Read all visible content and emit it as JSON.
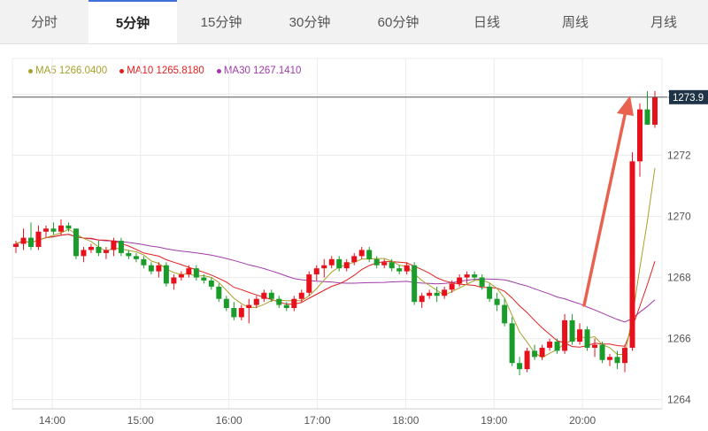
{
  "tabs": [
    {
      "label": "分时",
      "active": false
    },
    {
      "label": "5分钟",
      "active": true
    },
    {
      "label": "15分钟",
      "active": false
    },
    {
      "label": "30分钟",
      "active": false
    },
    {
      "label": "60分钟",
      "active": false
    },
    {
      "label": "日线",
      "active": false
    },
    {
      "label": "周线",
      "active": false
    },
    {
      "label": "月线",
      "active": false
    }
  ],
  "legend": [
    {
      "label": "MA5 1266.0400",
      "color": "#a6a12a"
    },
    {
      "label": "MA10 1265.8180",
      "color": "#e02020"
    },
    {
      "label": "MA30 1267.1410",
      "color": "#a03aa8"
    }
  ],
  "chart_data": {
    "type": "candlestick",
    "interval": "5分钟",
    "current_price_label": "1273.9",
    "current_price": 1273.9,
    "ylim": [
      1263.7,
      1274.3
    ],
    "yticks": [
      1264,
      1266,
      1268,
      1270,
      1272,
      1274
    ],
    "xlim": [
      13.55,
      20.9
    ],
    "xticks": [
      {
        "label": "14:00",
        "t": 14.0
      },
      {
        "label": "15:00",
        "t": 15.0
      },
      {
        "label": "16:00",
        "t": 16.0
      },
      {
        "label": "17:00",
        "t": 17.0
      },
      {
        "label": "18:00",
        "t": 18.0
      },
      {
        "label": "19:00",
        "t": 19.0
      },
      {
        "label": "20:00",
        "t": 20.0
      }
    ],
    "up_color": "#e8101b",
    "down_color": "#1a9c2a",
    "arrow_color": "#e8624f",
    "candles": [
      [
        1269.0,
        1269.2,
        1268.8,
        1269.1
      ],
      [
        1269.1,
        1269.6,
        1268.9,
        1269.3
      ],
      [
        1269.3,
        1269.8,
        1268.9,
        1269.0
      ],
      [
        1269.0,
        1269.7,
        1268.9,
        1269.5
      ],
      [
        1269.5,
        1269.7,
        1269.3,
        1269.6
      ],
      [
        1269.6,
        1269.8,
        1269.4,
        1269.5
      ],
      [
        1269.5,
        1269.9,
        1269.4,
        1269.7
      ],
      [
        1269.7,
        1269.8,
        1269.5,
        1269.6
      ],
      [
        1269.6,
        1269.6,
        1268.6,
        1268.7
      ],
      [
        1268.7,
        1269.0,
        1268.5,
        1268.9
      ],
      [
        1268.9,
        1269.1,
        1268.8,
        1269.0
      ],
      [
        1269.0,
        1269.2,
        1268.7,
        1268.8
      ],
      [
        1268.8,
        1269.0,
        1268.6,
        1268.9
      ],
      [
        1268.9,
        1269.3,
        1268.7,
        1269.2
      ],
      [
        1269.2,
        1269.3,
        1268.7,
        1268.8
      ],
      [
        1268.8,
        1268.9,
        1268.6,
        1268.7
      ],
      [
        1268.7,
        1268.8,
        1268.5,
        1268.6
      ],
      [
        1268.6,
        1268.7,
        1268.3,
        1268.4
      ],
      [
        1268.4,
        1268.5,
        1268.1,
        1268.2
      ],
      [
        1268.2,
        1268.5,
        1268.0,
        1268.4
      ],
      [
        1268.4,
        1268.5,
        1267.7,
        1267.8
      ],
      [
        1267.8,
        1268.1,
        1267.6,
        1268.0
      ],
      [
        1268.0,
        1268.2,
        1267.9,
        1268.1
      ],
      [
        1268.1,
        1268.4,
        1268.0,
        1268.3
      ],
      [
        1268.3,
        1268.4,
        1267.9,
        1268.0
      ],
      [
        1268.0,
        1268.1,
        1267.8,
        1267.9
      ],
      [
        1267.9,
        1268.0,
        1267.6,
        1267.7
      ],
      [
        1267.7,
        1267.8,
        1267.2,
        1267.3
      ],
      [
        1267.3,
        1267.4,
        1266.9,
        1267.0
      ],
      [
        1267.0,
        1267.2,
        1266.6,
        1266.7
      ],
      [
        1266.7,
        1267.1,
        1266.6,
        1267.0
      ],
      [
        1267.0,
        1267.3,
        1266.5,
        1267.1
      ],
      [
        1267.1,
        1267.4,
        1267.0,
        1267.3
      ],
      [
        1267.3,
        1267.6,
        1267.2,
        1267.5
      ],
      [
        1267.5,
        1267.6,
        1267.2,
        1267.3
      ],
      [
        1267.3,
        1267.4,
        1267.0,
        1267.1
      ],
      [
        1267.1,
        1267.2,
        1266.9,
        1267.0
      ],
      [
        1267.0,
        1267.4,
        1266.9,
        1267.3
      ],
      [
        1267.3,
        1267.6,
        1267.2,
        1267.5
      ],
      [
        1267.5,
        1268.2,
        1267.4,
        1268.1
      ],
      [
        1268.1,
        1268.4,
        1267.9,
        1268.3
      ],
      [
        1268.3,
        1268.6,
        1268.0,
        1268.4
      ],
      [
        1268.4,
        1268.7,
        1268.3,
        1268.6
      ],
      [
        1268.6,
        1268.7,
        1268.2,
        1268.3
      ],
      [
        1268.3,
        1268.6,
        1268.2,
        1268.5
      ],
      [
        1268.5,
        1268.8,
        1268.4,
        1268.7
      ],
      [
        1268.7,
        1269.0,
        1268.6,
        1268.9
      ],
      [
        1268.9,
        1269.0,
        1268.5,
        1268.6
      ],
      [
        1268.6,
        1268.7,
        1268.3,
        1268.4
      ],
      [
        1268.4,
        1268.6,
        1268.3,
        1268.5
      ],
      [
        1268.5,
        1268.6,
        1268.2,
        1268.3
      ],
      [
        1268.3,
        1268.4,
        1268.1,
        1268.2
      ],
      [
        1268.2,
        1268.5,
        1268.1,
        1268.4
      ],
      [
        1268.4,
        1268.5,
        1267.1,
        1267.2
      ],
      [
        1267.2,
        1267.5,
        1267.0,
        1267.4
      ],
      [
        1267.4,
        1267.6,
        1267.3,
        1267.5
      ],
      [
        1267.5,
        1267.7,
        1267.2,
        1267.4
      ],
      [
        1267.4,
        1267.7,
        1267.3,
        1267.6
      ],
      [
        1267.6,
        1267.9,
        1267.5,
        1267.8
      ],
      [
        1267.8,
        1268.1,
        1267.7,
        1268.0
      ],
      [
        1268.0,
        1268.2,
        1267.8,
        1268.1
      ],
      [
        1268.1,
        1268.2,
        1267.9,
        1268.0
      ],
      [
        1268.0,
        1268.1,
        1267.6,
        1267.7
      ],
      [
        1267.7,
        1267.8,
        1267.2,
        1267.3
      ],
      [
        1267.3,
        1267.5,
        1266.9,
        1267.1
      ],
      [
        1267.1,
        1267.3,
        1266.4,
        1266.5
      ],
      [
        1266.5,
        1266.7,
        1265.1,
        1265.2
      ],
      [
        1265.2,
        1265.4,
        1264.8,
        1265.0
      ],
      [
        1265.0,
        1265.7,
        1264.9,
        1265.6
      ],
      [
        1265.6,
        1265.8,
        1265.3,
        1265.4
      ],
      [
        1265.4,
        1265.8,
        1265.3,
        1265.7
      ],
      [
        1265.7,
        1266.0,
        1265.6,
        1265.9
      ],
      [
        1265.9,
        1266.0,
        1265.5,
        1265.6
      ],
      [
        1265.6,
        1266.8,
        1265.5,
        1266.6
      ],
      [
        1266.6,
        1266.8,
        1265.8,
        1265.9
      ],
      [
        1265.9,
        1266.5,
        1265.8,
        1266.3
      ],
      [
        1266.3,
        1266.4,
        1265.6,
        1265.7
      ],
      [
        1265.7,
        1266.0,
        1265.4,
        1265.8
      ],
      [
        1265.8,
        1265.9,
        1265.2,
        1265.3
      ],
      [
        1265.3,
        1265.5,
        1265.1,
        1265.4
      ],
      [
        1265.4,
        1265.6,
        1265.0,
        1265.2
      ],
      [
        1265.2,
        1265.8,
        1264.9,
        1265.7
      ],
      [
        1265.7,
        1272.1,
        1265.6,
        1271.8
      ],
      [
        1271.8,
        1273.7,
        1271.3,
        1273.5
      ],
      [
        1273.5,
        1274.1,
        1273.0,
        1273.0
      ],
      [
        1273.0,
        1274.1,
        1272.9,
        1273.9
      ]
    ]
  }
}
